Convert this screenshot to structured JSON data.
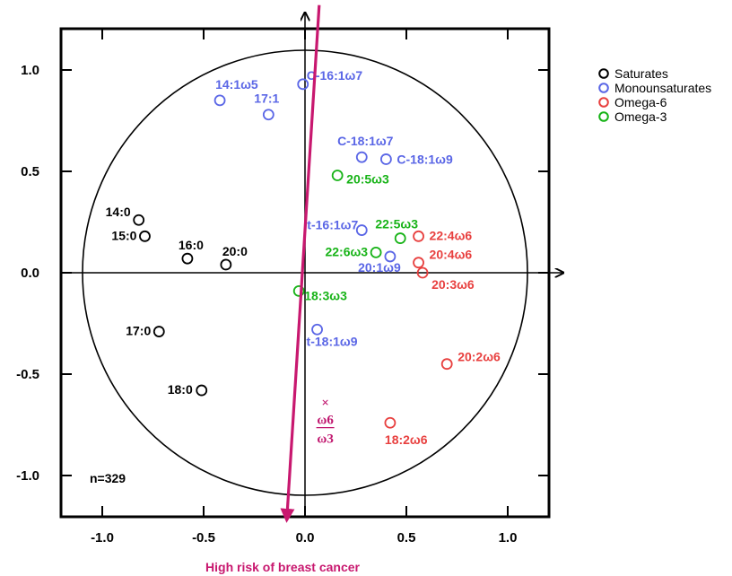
{
  "chart_data": {
    "type": "scatter",
    "title": "",
    "xlabel": "",
    "ylabel": "",
    "xlim": [
      -1.2,
      1.2
    ],
    "ylim": [
      -1.2,
      1.2
    ],
    "x_ticks": [
      "-1.0",
      "-0.5",
      "0.0",
      "0.5",
      "1.0"
    ],
    "y_ticks": [
      "1.0",
      "0.5",
      "0.0",
      "-0.5",
      "-1.0"
    ],
    "x_tick_values": [
      -1.0,
      -0.5,
      0.0,
      0.5,
      1.0
    ],
    "y_tick_values": [
      1.0,
      0.5,
      0.0,
      -0.5,
      -1.0
    ],
    "unit_circle": true,
    "legend_position": "right",
    "series": [
      {
        "name": "Saturates",
        "color": "#000000",
        "points": [
          {
            "label": "14:0",
            "x": -0.82,
            "y": 0.26
          },
          {
            "label": "15:0",
            "x": -0.79,
            "y": 0.18
          },
          {
            "label": "16:0",
            "x": -0.58,
            "y": 0.07
          },
          {
            "label": "20:0",
            "x": -0.39,
            "y": 0.04
          },
          {
            "label": "17:0",
            "x": -0.72,
            "y": -0.29
          },
          {
            "label": "18:0",
            "x": -0.51,
            "y": -0.58
          }
        ]
      },
      {
        "name": "Monounsaturates",
        "color": "#5a66e6",
        "points": [
          {
            "label": "C-16:1ω7",
            "x": -0.01,
            "y": 0.93
          },
          {
            "label": "14:1ω5",
            "x": -0.42,
            "y": 0.85
          },
          {
            "label": "17:1",
            "x": -0.18,
            "y": 0.78
          },
          {
            "label": "C-18:1ω7",
            "x": 0.28,
            "y": 0.57
          },
          {
            "label": "C-18:1ω9",
            "x": 0.4,
            "y": 0.56
          },
          {
            "label": "t-16:1ω7",
            "x": 0.28,
            "y": 0.21
          },
          {
            "label": "20:1ω9",
            "x": 0.42,
            "y": 0.08
          },
          {
            "label": "t-18:1ω9",
            "x": 0.06,
            "y": -0.28
          }
        ]
      },
      {
        "name": "Omega-6",
        "color": "#e8403f",
        "points": [
          {
            "label": "22:4ω6",
            "x": 0.56,
            "y": 0.18
          },
          {
            "label": "20:4ω6",
            "x": 0.56,
            "y": 0.05
          },
          {
            "label": "20:3ω6",
            "x": 0.58,
            "y": 0.0
          },
          {
            "label": "20:2ω6",
            "x": 0.7,
            "y": -0.45
          },
          {
            "label": "18:2ω6",
            "x": 0.42,
            "y": -0.74
          }
        ]
      },
      {
        "name": "Omega-3",
        "color": "#17b317",
        "points": [
          {
            "label": "20:5ω3",
            "x": 0.16,
            "y": 0.48
          },
          {
            "label": "22:5ω3",
            "x": 0.47,
            "y": 0.17
          },
          {
            "label": "22:6ω3",
            "x": 0.35,
            "y": 0.1
          },
          {
            "label": "18:3ω3",
            "x": -0.03,
            "y": -0.09
          }
        ]
      }
    ],
    "ratio_point": {
      "numerator": "ω6",
      "denominator": "ω3",
      "x": 0.1,
      "y": -0.64,
      "color": "#c0166e"
    },
    "risk_arrow": {
      "label": "High risk of breast cancer",
      "color": "#c8186f",
      "from": [
        0.07,
        1.32
      ],
      "to": [
        -0.09,
        -1.22
      ]
    },
    "annotation": "n=329"
  }
}
